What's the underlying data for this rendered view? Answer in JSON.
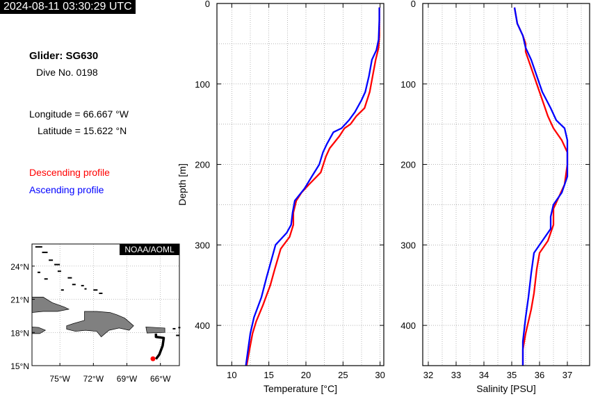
{
  "header": {
    "timestamp": "2024-08-11 03:30:29 UTC"
  },
  "info": {
    "glider": "Glider: SG630",
    "dive": "Dive No. 0198",
    "longitude": "Longitude = 66.667 °W",
    "latitude": "Latitude = 15.622 °N"
  },
  "legend": {
    "descending": "Descending profile",
    "ascending": "Ascending profile",
    "descending_color": "#ff0000",
    "ascending_color": "#0000ff"
  },
  "map": {
    "credit": "NOAA/AOML",
    "lat_ticks": [
      "15°N",
      "18°N",
      "21°N",
      "24°N"
    ],
    "lon_ticks": [
      "75°W",
      "72°W",
      "69°W",
      "66°W"
    ],
    "lon_range": [
      -77.5,
      -64.3
    ],
    "lat_range": [
      15.0,
      26.0
    ],
    "track": [
      [
        -66.4,
        17.9
      ],
      [
        -66.4,
        17.6
      ],
      [
        -65.7,
        17.5
      ],
      [
        -65.8,
        16.8
      ],
      [
        -66.1,
        16.0
      ],
      [
        -66.4,
        15.6
      ]
    ],
    "glider_position": [
      -66.667,
      15.622
    ],
    "track_color": "#000000",
    "position_color": "#ff0000",
    "land_color": "#808080"
  },
  "chart_data": [
    {
      "type": "line",
      "xlabel": "Temperature [°C]",
      "ylabel": "Depth [m]",
      "xlim": [
        8,
        30.5
      ],
      "ylim": [
        0,
        450
      ],
      "y_inverted": true,
      "xticks": [
        10,
        15,
        20,
        25,
        30
      ],
      "yticks": [
        0,
        100,
        200,
        300,
        400
      ],
      "grid": true,
      "series": [
        {
          "name": "Descending profile",
          "color": "#ff0000",
          "points": [
            [
              29.9,
              5
            ],
            [
              29.9,
              20
            ],
            [
              29.9,
              40
            ],
            [
              29.8,
              55
            ],
            [
              29.4,
              70
            ],
            [
              29.0,
              90
            ],
            [
              28.6,
              110
            ],
            [
              27.9,
              130
            ],
            [
              26.8,
              140
            ],
            [
              26.0,
              150
            ],
            [
              25.2,
              155
            ],
            [
              24.5,
              165
            ],
            [
              23.2,
              180
            ],
            [
              22.7,
              190
            ],
            [
              22.0,
              210
            ],
            [
              20.4,
              225
            ],
            [
              19.4,
              235
            ],
            [
              18.7,
              245
            ],
            [
              18.3,
              260
            ],
            [
              18.3,
              275
            ],
            [
              17.8,
              290
            ],
            [
              16.6,
              305
            ],
            [
              15.8,
              330
            ],
            [
              15.2,
              350
            ],
            [
              14.2,
              375
            ],
            [
              13.3,
              395
            ],
            [
              12.8,
              410
            ],
            [
              12.4,
              430
            ],
            [
              12.0,
              450
            ]
          ]
        },
        {
          "name": "Ascending profile",
          "color": "#0000ff",
          "points": [
            [
              29.9,
              5
            ],
            [
              29.9,
              20
            ],
            [
              29.8,
              45
            ],
            [
              29.5,
              58
            ],
            [
              28.9,
              70
            ],
            [
              28.5,
              90
            ],
            [
              28.0,
              110
            ],
            [
              27.5,
              120
            ],
            [
              26.6,
              135
            ],
            [
              25.8,
              145
            ],
            [
              24.8,
              155
            ],
            [
              23.7,
              160
            ],
            [
              22.8,
              175
            ],
            [
              22.3,
              185
            ],
            [
              21.8,
              200
            ],
            [
              20.8,
              215
            ],
            [
              19.8,
              230
            ],
            [
              18.5,
              245
            ],
            [
              18.2,
              260
            ],
            [
              18.0,
              275
            ],
            [
              17.4,
              285
            ],
            [
              15.9,
              300
            ],
            [
              15.3,
              320
            ],
            [
              14.7,
              340
            ],
            [
              14.0,
              365
            ],
            [
              13.0,
              390
            ],
            [
              12.5,
              410
            ],
            [
              12.2,
              430
            ],
            [
              11.9,
              450
            ]
          ]
        }
      ]
    },
    {
      "type": "line",
      "xlabel": "Salinity [PSU]",
      "ylabel": "",
      "xlim": [
        31.8,
        37.8
      ],
      "ylim": [
        0,
        450
      ],
      "y_inverted": true,
      "xticks": [
        32,
        33,
        34,
        35,
        36,
        37
      ],
      "yticks": [
        0,
        100,
        200,
        300,
        400
      ],
      "grid": true,
      "series": [
        {
          "name": "Descending profile",
          "color": "#ff0000",
          "points": [
            [
              35.1,
              5
            ],
            [
              35.2,
              25
            ],
            [
              35.4,
              40
            ],
            [
              35.5,
              50
            ],
            [
              35.5,
              60
            ],
            [
              35.7,
              80
            ],
            [
              35.9,
              100
            ],
            [
              36.1,
              120
            ],
            [
              36.3,
              140
            ],
            [
              36.5,
              155
            ],
            [
              36.8,
              170
            ],
            [
              37.0,
              185
            ],
            [
              37.0,
              200
            ],
            [
              36.9,
              225
            ],
            [
              36.7,
              240
            ],
            [
              36.5,
              255
            ],
            [
              36.5,
              275
            ],
            [
              36.3,
              295
            ],
            [
              36.0,
              310
            ],
            [
              35.9,
              330
            ],
            [
              35.8,
              360
            ],
            [
              35.7,
              380
            ],
            [
              35.5,
              410
            ],
            [
              35.4,
              430
            ],
            [
              35.4,
              450
            ]
          ]
        },
        {
          "name": "Ascending profile",
          "color": "#0000ff",
          "points": [
            [
              35.1,
              5
            ],
            [
              35.2,
              25
            ],
            [
              35.4,
              40
            ],
            [
              35.5,
              55
            ],
            [
              35.7,
              70
            ],
            [
              35.9,
              90
            ],
            [
              36.1,
              110
            ],
            [
              36.4,
              130
            ],
            [
              36.6,
              145
            ],
            [
              36.9,
              155
            ],
            [
              37.0,
              170
            ],
            [
              37.0,
              195
            ],
            [
              37.0,
              215
            ],
            [
              36.8,
              235
            ],
            [
              36.5,
              250
            ],
            [
              36.4,
              265
            ],
            [
              36.4,
              280
            ],
            [
              36.1,
              295
            ],
            [
              35.8,
              310
            ],
            [
              35.7,
              335
            ],
            [
              35.6,
              365
            ],
            [
              35.5,
              390
            ],
            [
              35.4,
              420
            ],
            [
              35.4,
              450
            ]
          ]
        }
      ]
    }
  ]
}
